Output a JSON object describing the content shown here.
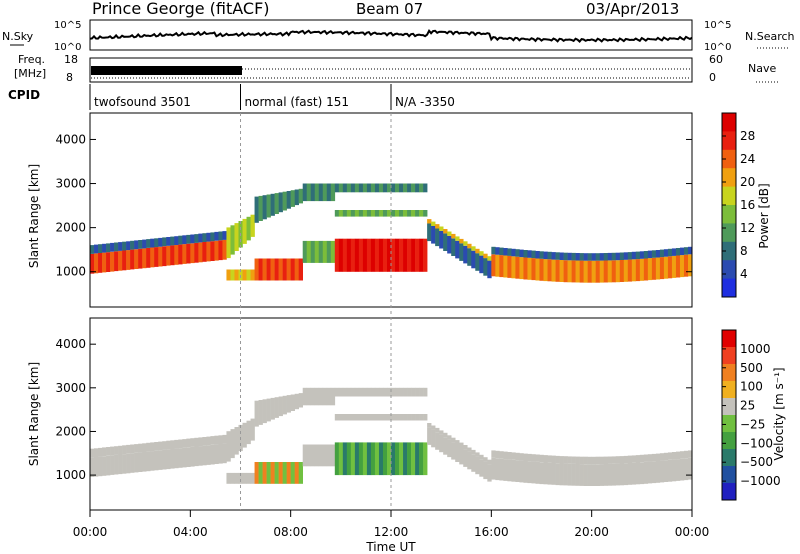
{
  "header": {
    "radar": "Prince George (fitACF)",
    "beam": "Beam 07",
    "date": "03/Apr/2013"
  },
  "panels": {
    "nsky": {
      "label": "N.Sky",
      "ticks": [
        "10^5",
        "10^0"
      ]
    },
    "nsearch": {
      "label": "N.Search",
      "ticks": [
        "10^5",
        "10^0"
      ]
    },
    "freq": {
      "label_line1": "Freq.",
      "label_line2": "[MHz]",
      "ticks": [
        "18",
        "8"
      ]
    },
    "nave": {
      "label": "Nave",
      "ticks": [
        "60",
        "0"
      ]
    },
    "cpid": {
      "label": "CPID",
      "segments": [
        {
          "start_h": 0.0,
          "end_h": 6.0,
          "label": "twofsound 3501"
        },
        {
          "start_h": 6.0,
          "end_h": 12.0,
          "label": "normal (fast) 151"
        },
        {
          "start_h": 12.0,
          "end_h": 24.0,
          "label": "N/A -3350"
        }
      ]
    }
  },
  "chart_data": [
    {
      "type": "heatmap",
      "name": "power",
      "ylabel": "Slant Range [km]",
      "yticks": [
        1000,
        2000,
        3000,
        4000
      ],
      "ylim": [
        200,
        4600
      ],
      "xlim": [
        0,
        24
      ],
      "colorbar": {
        "label": "Power [dB]",
        "ticks": [
          4,
          8,
          12,
          16,
          20,
          24,
          28
        ],
        "colors": [
          "#1f2fe0",
          "#2b4bb0",
          "#2f6e78",
          "#4f9a5a",
          "#7cbd3a",
          "#c8d41e",
          "#f0a010",
          "#f06010",
          "#e82010",
          "#dd0000"
        ]
      }
    },
    {
      "type": "heatmap",
      "name": "velocity",
      "ylabel": "Slant Range [km]",
      "yticks": [
        1000,
        2000,
        3000,
        4000
      ],
      "ylim": [
        200,
        4600
      ],
      "xlim": [
        0,
        24
      ],
      "colorbar": {
        "label": "Velocity [m s⁻¹]",
        "ticks": [
          "1000",
          "500",
          "100",
          "25",
          "−25",
          "−100",
          "−500",
          "−1000"
        ],
        "colors": [
          "#2020c0",
          "#2050a0",
          "#2a7a6a",
          "#44a040",
          "#70c040",
          "#c4c2bc",
          "#f0b020",
          "#f08020",
          "#f04020",
          "#e00000"
        ]
      }
    }
  ],
  "xaxis": {
    "label": "Time UT",
    "ticks": [
      "00:00",
      "04:00",
      "08:00",
      "12:00",
      "16:00",
      "20:00",
      "00:00"
    ]
  }
}
